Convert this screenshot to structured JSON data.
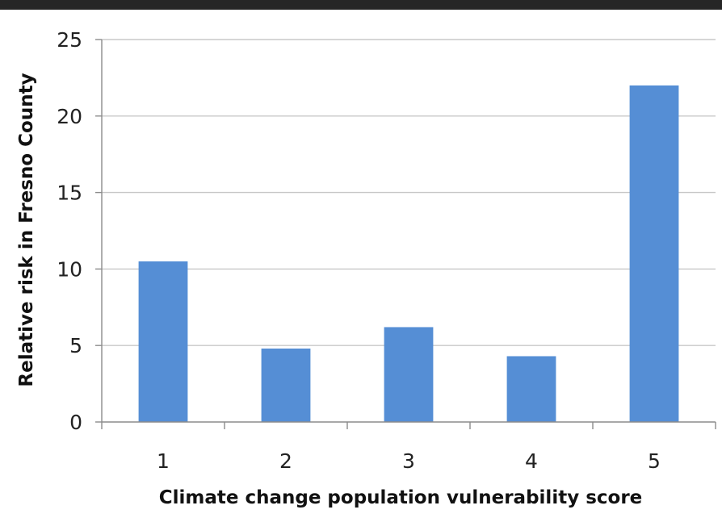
{
  "chart_data": {
    "type": "bar",
    "title": "",
    "xlabel": "Climate change population vulnerability score",
    "ylabel": "Relative risk in Fresno County",
    "categories": [
      "1",
      "2",
      "3",
      "4",
      "5"
    ],
    "values": [
      10.5,
      4.8,
      6.2,
      4.3,
      22.0
    ],
    "ylim": [
      0,
      25
    ],
    "yticks": [
      "0",
      "5",
      "10",
      "15",
      "20",
      "25"
    ],
    "grid": true,
    "legend": "none",
    "bar_color": "#558ed5",
    "grid_color": "#c8c8c8"
  }
}
